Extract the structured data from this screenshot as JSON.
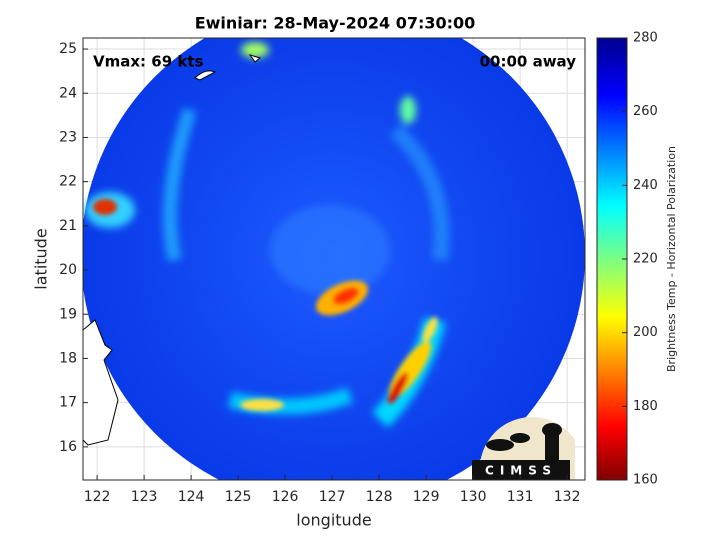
{
  "title": "Ewiniar: 28-May-2024 07:30:00",
  "annotations": {
    "vmax": "Vmax: 69 kts",
    "away": "00:00 away"
  },
  "axes": {
    "xlabel": "longitude",
    "ylabel": "latitude",
    "xlim": [
      121.7,
      132.38
    ],
    "ylim": [
      15.25,
      25.25
    ],
    "xticks": [
      122,
      123,
      124,
      125,
      126,
      127,
      128,
      129,
      130,
      131,
      132
    ],
    "yticks": [
      16,
      17,
      18,
      19,
      20,
      21,
      22,
      23,
      24,
      25
    ],
    "grid": true
  },
  "colorbar": {
    "label": "Brightness Temp - Horizontal Polarization",
    "lim": [
      160,
      280
    ],
    "ticks": [
      160,
      180,
      200,
      220,
      240,
      260,
      280
    ]
  },
  "logo": "CIMSS"
}
